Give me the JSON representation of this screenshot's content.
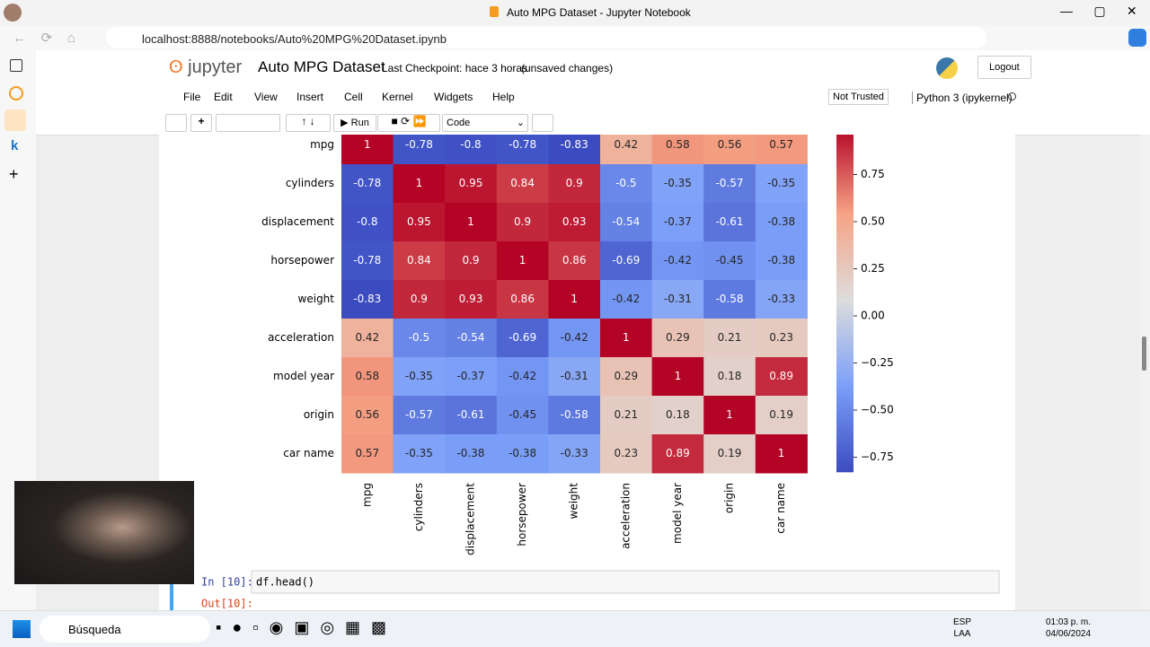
{
  "browser": {
    "tab_title": "Auto MPG Dataset - Jupyter Notebook",
    "url": "localhost:8888/notebooks/Auto%20MPG%20Dataset.ipynb"
  },
  "header": {
    "logo": "jupyter",
    "notebook_title": "Auto MPG Dataset",
    "checkpoint": "Last Checkpoint: hace 3 horas",
    "status": "(unsaved changes)",
    "logout": "Logout"
  },
  "menu": [
    "File",
    "Edit",
    "View",
    "Insert",
    "Cell",
    "Kernel",
    "Widgets",
    "Help"
  ],
  "trust": "Not Trusted",
  "kernel": "Python 3 (ipykernel)",
  "toolbar": {
    "run": "Run",
    "cell_type": "Code"
  },
  "chart_data": {
    "type": "heatmap",
    "rows": [
      "mpg",
      "cylinders",
      "displacement",
      "horsepower",
      "weight",
      "acceleration",
      "model year",
      "origin",
      "car name"
    ],
    "columns": [
      "mpg",
      "cylinders",
      "displacement",
      "horsepower",
      "weight",
      "acceleration",
      "model year",
      "origin",
      "car name"
    ],
    "values": [
      [
        1,
        -0.78,
        -0.8,
        -0.78,
        -0.83,
        0.42,
        0.58,
        0.56,
        0.57
      ],
      [
        -0.78,
        1,
        0.95,
        0.84,
        0.9,
        -0.5,
        -0.35,
        -0.57,
        -0.35
      ],
      [
        -0.8,
        0.95,
        1,
        0.9,
        0.93,
        -0.54,
        -0.37,
        -0.61,
        -0.38
      ],
      [
        -0.78,
        0.84,
        0.9,
        1,
        0.86,
        -0.69,
        -0.42,
        -0.45,
        -0.38
      ],
      [
        -0.83,
        0.9,
        0.93,
        0.86,
        1,
        -0.42,
        -0.31,
        -0.58,
        -0.33
      ],
      [
        0.42,
        -0.5,
        -0.54,
        -0.69,
        -0.42,
        1,
        0.29,
        0.21,
        0.23
      ],
      [
        0.58,
        -0.35,
        -0.37,
        -0.42,
        -0.31,
        0.29,
        1,
        0.18,
        0.89
      ],
      [
        0.56,
        -0.57,
        -0.61,
        -0.45,
        -0.58,
        0.21,
        0.18,
        1,
        0.19
      ],
      [
        0.57,
        -0.35,
        -0.38,
        -0.38,
        -0.33,
        0.23,
        0.89,
        0.19,
        1
      ]
    ],
    "clim": [
      -0.83,
      1
    ],
    "colormap": [
      "#3b4cc0",
      "#7b9ff9",
      "#dddcdc",
      "#f6a385",
      "#b40426"
    ],
    "colorbar_ticks": [
      0.75,
      {
        "value": 0.5,
        "label": "0.50"
      },
      0.25,
      {
        "value": 0,
        "label": "0.00"
      },
      {
        "value": -0.25,
        "label": "−0.25"
      },
      {
        "value": -0.5,
        "label": "−0.50"
      },
      {
        "value": -0.75,
        "label": "−0.75"
      }
    ]
  },
  "next_cell": {
    "in_prompt": "In [10]:",
    "code": "df.head()",
    "out_prompt": "Out[10]:"
  },
  "taskbar": {
    "search": "Búsqueda",
    "language": "ESP",
    "layout": "LAA",
    "time": "01:03 p. m.",
    "date": "04/06/2024"
  }
}
